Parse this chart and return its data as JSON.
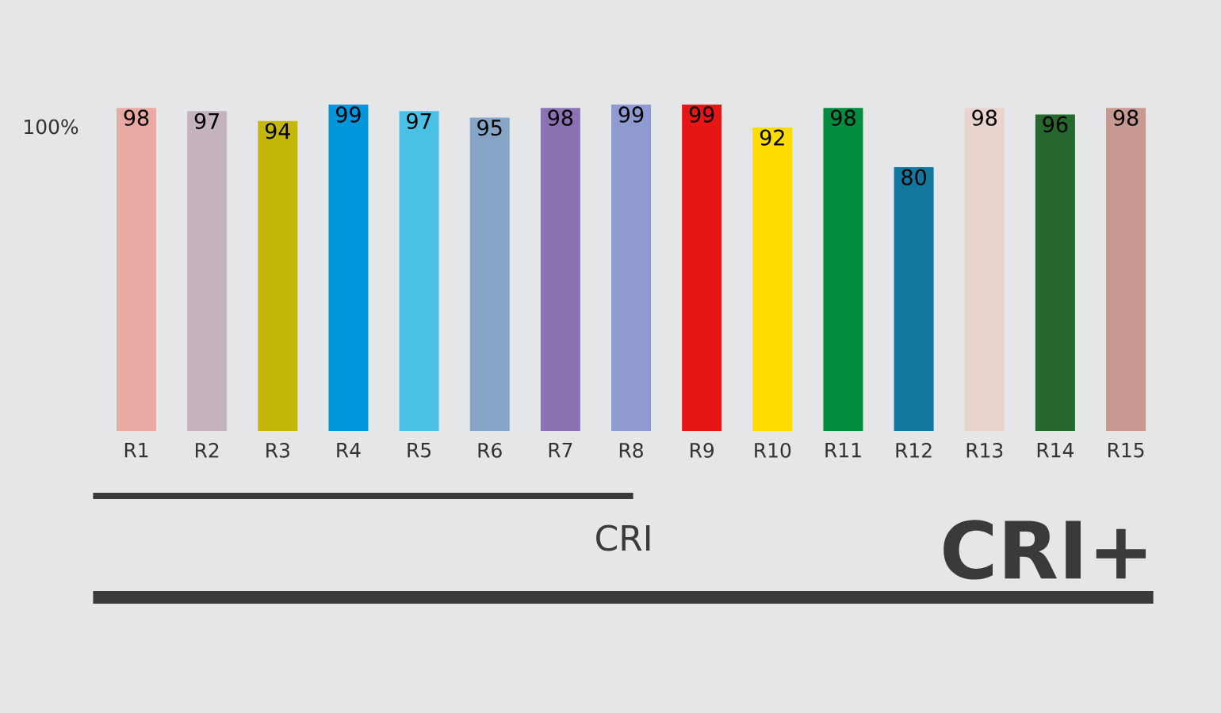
{
  "chart_data": {
    "type": "bar",
    "categories": [
      "R1",
      "R2",
      "R3",
      "R4",
      "R5",
      "R6",
      "R7",
      "R8",
      "R9",
      "R10",
      "R11",
      "R12",
      "R13",
      "R14",
      "R15"
    ],
    "values": [
      98,
      97,
      94,
      99,
      97,
      95,
      98,
      99,
      99,
      92,
      98,
      80,
      98,
      96,
      98
    ],
    "colors": [
      "#e8aaa3",
      "#c4b3bc",
      "#c5b70a",
      "#0096db",
      "#4bc0e6",
      "#86a5c6",
      "#8a72b3",
      "#8f9bd0",
      "#e61616",
      "#ffdc00",
      "#008b3e",
      "#14789e",
      "#e8d4cd",
      "#27682e",
      "#c89990"
    ],
    "data_labels": true,
    "annotations": [
      "CRI",
      "CRI+",
      "100%"
    ]
  }
}
